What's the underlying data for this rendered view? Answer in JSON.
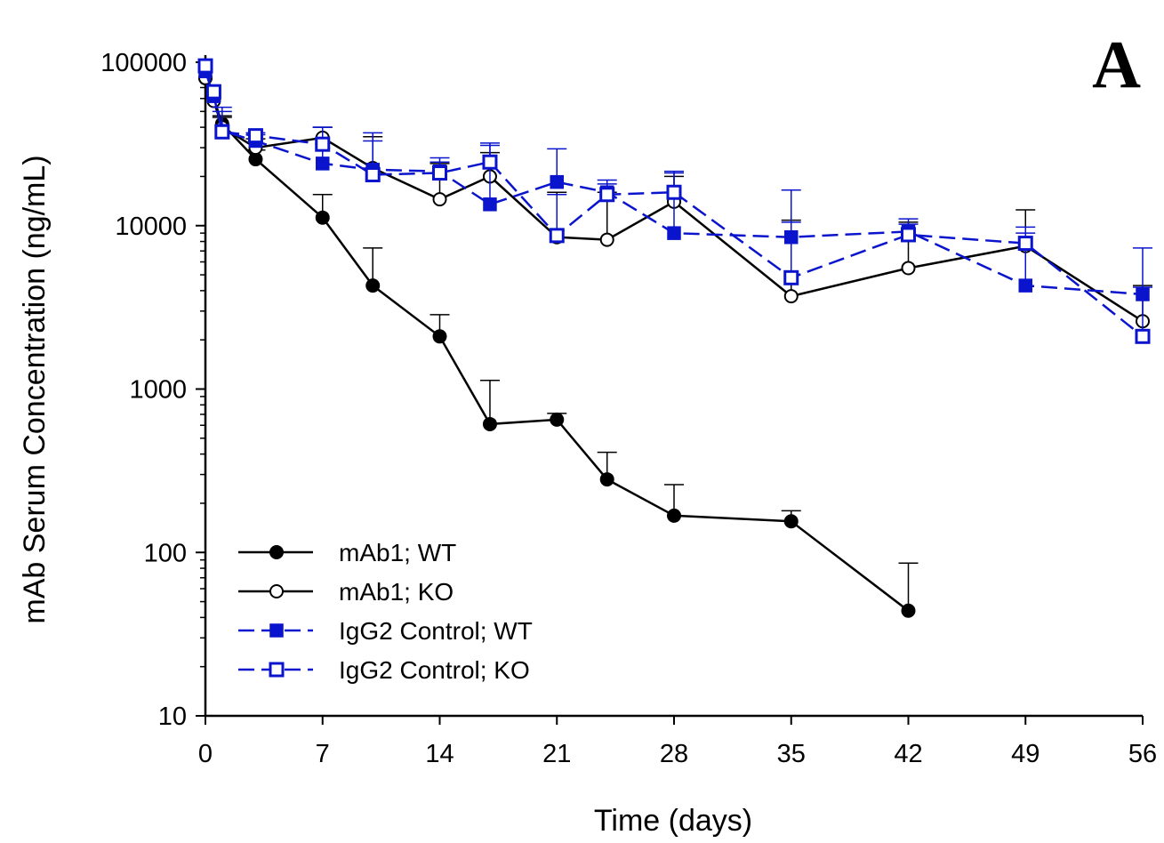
{
  "chart_data": {
    "type": "line",
    "panel_label": "A",
    "xlabel": "Time (days)",
    "ylabel": "mAb Serum Concentration (ng/mL)",
    "xlim": [
      0,
      56
    ],
    "ylim": [
      10,
      100000
    ],
    "yscale": "log",
    "x_ticks": [
      0,
      7,
      14,
      21,
      28,
      35,
      42,
      49,
      56
    ],
    "y_ticks": [
      10,
      100,
      1000,
      10000,
      100000
    ],
    "grid": false,
    "legend_position": "bottom-left",
    "series": [
      {
        "name": "mAb1; WT",
        "color": "#000000",
        "marker": "filled-circle",
        "line": "solid",
        "x": [
          0,
          0.5,
          1,
          3,
          7,
          10,
          14,
          17,
          21,
          24,
          28,
          35,
          42
        ],
        "y": [
          80000,
          60000,
          42000,
          25500,
          11200,
          4300,
          2100,
          610,
          650,
          280,
          168,
          155,
          44
        ],
        "error_upper": [
          null,
          null,
          47000,
          29000,
          15500,
          7300,
          2850,
          1130,
          710,
          410,
          260,
          180,
          86
        ]
      },
      {
        "name": "mAb1; KO",
        "color": "#000000",
        "marker": "open-circle",
        "line": "solid",
        "x": [
          0,
          0.5,
          1,
          3,
          7,
          10,
          14,
          17,
          21,
          24,
          28,
          35,
          42,
          49,
          56
        ],
        "y": [
          80000,
          58000,
          40000,
          30000,
          34500,
          22500,
          14500,
          20000,
          8500,
          8200,
          14000,
          3700,
          5500,
          7500,
          2600
        ],
        "error_upper": [
          null,
          null,
          46000,
          34000,
          40000,
          35000,
          24000,
          28000,
          16000,
          16000,
          20000,
          10800,
          10500,
          12500,
          4300
        ]
      },
      {
        "name": "IgG2 Control; WT",
        "color": "#0a14cc",
        "marker": "filled-square",
        "line": "dashed",
        "x": [
          0,
          0.5,
          1,
          3,
          7,
          10,
          14,
          17,
          21,
          24,
          28,
          35,
          42,
          49,
          56
        ],
        "y": [
          88000,
          62000,
          38000,
          33000,
          24000,
          22000,
          21500,
          13500,
          18500,
          16000,
          9000,
          8500,
          9200,
          4300,
          3800
        ],
        "error_upper": [
          null,
          null,
          50000,
          36000,
          40000,
          37000,
          26000,
          31000,
          29500,
          19000,
          21000,
          16500,
          11000,
          9000,
          7300
        ]
      },
      {
        "name": "IgG2 Control; KO",
        "color": "#0a14cc",
        "marker": "open-square",
        "line": "dashed",
        "x": [
          0,
          0.5,
          1,
          3,
          7,
          10,
          14,
          17,
          21,
          24,
          28,
          35,
          42,
          49,
          56
        ],
        "y": [
          95000,
          66000,
          37500,
          35500,
          31500,
          20500,
          21000,
          24500,
          8700,
          15500,
          16000,
          4800,
          8800,
          7800,
          2100
        ],
        "error_upper": [
          null,
          null,
          53000,
          37000,
          40000,
          33000,
          24500,
          32000,
          15500,
          18000,
          21500,
          10500,
          10200,
          9800,
          4200
        ]
      }
    ]
  }
}
